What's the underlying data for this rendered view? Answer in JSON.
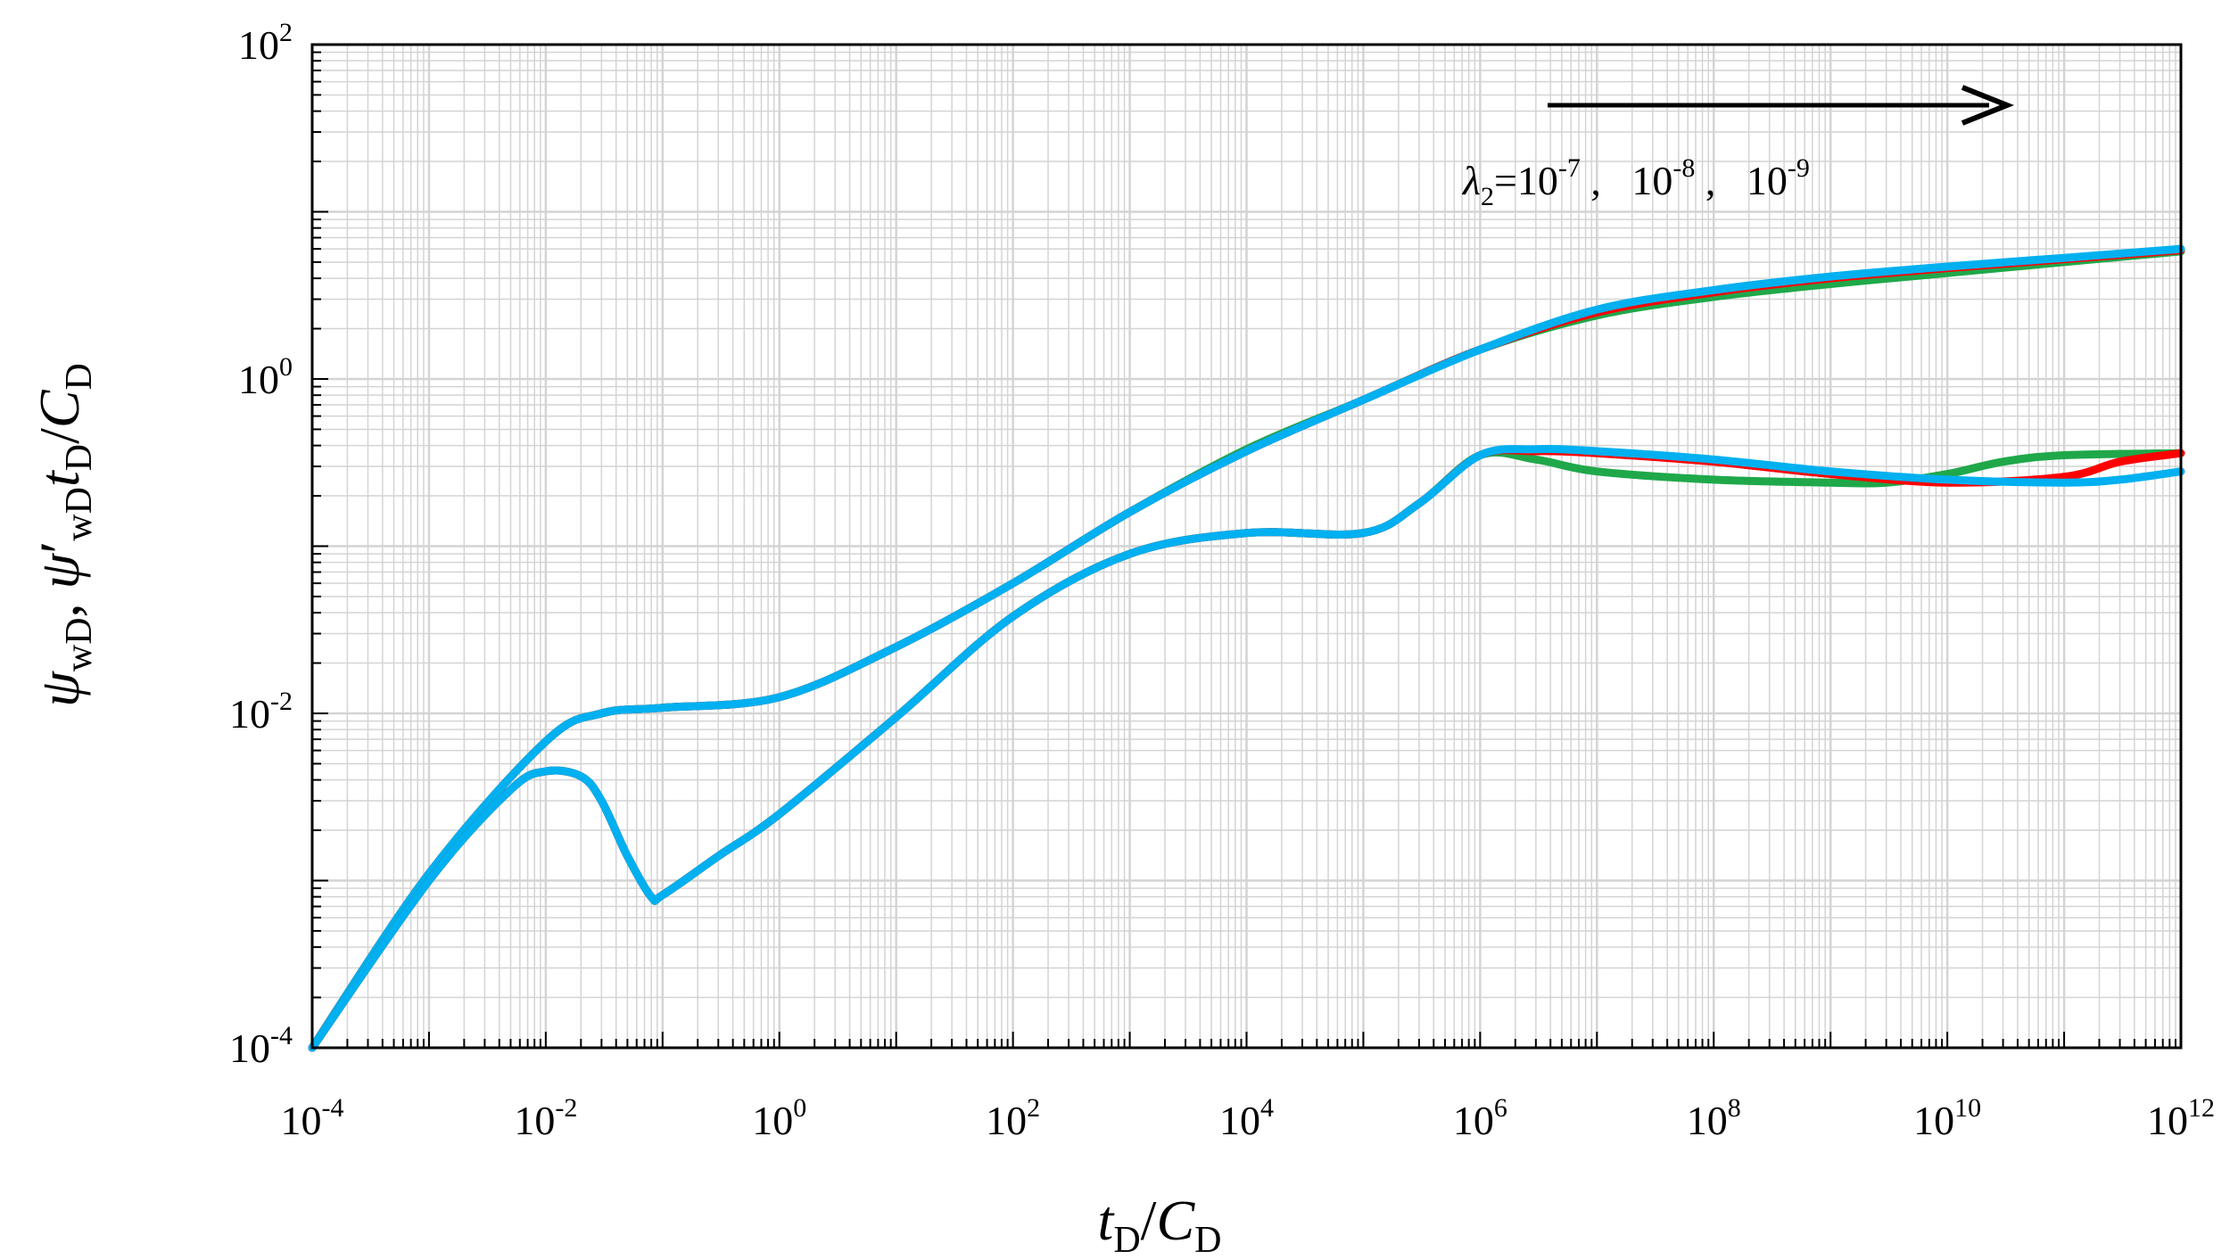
{
  "chart_data": {
    "type": "line",
    "scale": {
      "x": "log",
      "y": "log"
    },
    "xlim": [
      0.0001,
      1000000000000
    ],
    "ylim": [
      0.0001,
      100
    ],
    "grid": true,
    "x_major_ticks": [
      {
        "value": 0.0001,
        "base": "10",
        "exp": "-4"
      },
      {
        "value": 0.01,
        "base": "10",
        "exp": "-2"
      },
      {
        "value": 1,
        "base": "10",
        "exp": "0"
      },
      {
        "value": 100,
        "base": "10",
        "exp": "2"
      },
      {
        "value": 10000,
        "base": "10",
        "exp": "4"
      },
      {
        "value": 1000000,
        "base": "10",
        "exp": "6"
      },
      {
        "value": 100000000,
        "base": "10",
        "exp": "8"
      },
      {
        "value": 10000000000,
        "base": "10",
        "exp": "10"
      },
      {
        "value": 1000000000000,
        "base": "10",
        "exp": "12"
      }
    ],
    "y_major_ticks": [
      {
        "value": 0.0001,
        "base": "10",
        "exp": "-4"
      },
      {
        "value": 0.01,
        "base": "10",
        "exp": "-2"
      },
      {
        "value": 1,
        "base": "10",
        "exp": "0"
      },
      {
        "value": 100,
        "base": "10",
        "exp": "2"
      }
    ],
    "xlabel": {
      "t": "t",
      "t_sub": "D",
      "slash": "/",
      "c": "C",
      "c_sub": "D"
    },
    "ylabel": {
      "psi1": "ψ",
      "psi1_sub": "wD",
      "comma1": ", ",
      "psi2": "ψ",
      "prime": "′",
      "psi2_sub": "wD",
      "t": "t",
      "t_sub": "D",
      "slash": "/",
      "c": "C",
      "c_sub": "D"
    },
    "annotation": {
      "lambda": "λ",
      "lambda_sub": "2",
      "eq": "=10",
      "exp1": "-7",
      "sep1": " ,   10",
      "exp2": "-8",
      "sep2": " ,   10",
      "exp3": "-9",
      "arrow_direction": "right"
    },
    "series": [
      {
        "name": "λ2=10^-7 pressure",
        "color": "#1fa84a",
        "x": [
          0.0001,
          0.001,
          0.01,
          0.03,
          0.1,
          1,
          10,
          100,
          1000,
          10000,
          100000,
          1000000,
          10000000.0,
          100000000.0,
          1000000000.0,
          10000000000.0,
          100000000000.0,
          1000000000000.0
        ],
        "y": [
          0.0001,
          0.0011,
          0.0068,
          0.01,
          0.0108,
          0.0125,
          0.025,
          0.06,
          0.16,
          0.38,
          0.75,
          1.5,
          2.4,
          3.1,
          3.7,
          4.3,
          5.0,
          5.8
        ]
      },
      {
        "name": "λ2=10^-8 pressure",
        "color": "#ff0000",
        "x": [
          0.0001,
          0.001,
          0.01,
          0.03,
          0.1,
          1,
          10,
          100,
          1000,
          10000,
          100000,
          1000000,
          10000000.0,
          100000000.0,
          1000000000.0,
          10000000000.0,
          100000000000.0,
          1000000000000.0
        ],
        "y": [
          0.0001,
          0.0011,
          0.0068,
          0.01,
          0.0108,
          0.0125,
          0.025,
          0.06,
          0.16,
          0.37,
          0.75,
          1.5,
          2.5,
          3.3,
          4.0,
          4.6,
          5.2,
          5.9
        ]
      },
      {
        "name": "λ2=10^-9 pressure",
        "color": "#00b0f0",
        "x": [
          0.0001,
          0.001,
          0.01,
          0.03,
          0.1,
          1,
          10,
          100,
          1000,
          10000,
          100000,
          1000000,
          10000000.0,
          100000000.0,
          1000000000.0,
          10000000000.0,
          100000000000.0,
          1000000000000.0
        ],
        "y": [
          0.0001,
          0.0011,
          0.0068,
          0.01,
          0.0108,
          0.0125,
          0.025,
          0.06,
          0.16,
          0.37,
          0.75,
          1.5,
          2.6,
          3.4,
          4.1,
          4.7,
          5.3,
          6.0
        ]
      },
      {
        "name": "λ2=10^-7 derivative",
        "color": "#1fa84a",
        "x": [
          0.0001,
          0.001,
          0.005,
          0.01,
          0.02,
          0.03,
          0.05,
          0.08,
          0.1,
          0.3,
          1,
          10,
          100,
          1000,
          10000,
          100000,
          300000,
          1000000,
          3000000.0,
          10000000.0,
          100000000.0,
          1000000000.0,
          3000000000.0,
          10000000000.0,
          30000000000.0,
          100000000000.0,
          1000000000000.0
        ],
        "y": [
          0.0001,
          0.001,
          0.0035,
          0.0045,
          0.0042,
          0.003,
          0.0014,
          0.0008,
          0.00082,
          0.0014,
          0.0025,
          0.0095,
          0.038,
          0.09,
          0.12,
          0.12,
          0.18,
          0.35,
          0.33,
          0.28,
          0.25,
          0.24,
          0.24,
          0.27,
          0.32,
          0.35,
          0.36
        ]
      },
      {
        "name": "λ2=10^-8 derivative",
        "color": "#ff0000",
        "x": [
          0.0001,
          0.001,
          0.005,
          0.01,
          0.02,
          0.03,
          0.05,
          0.08,
          0.1,
          0.3,
          1,
          10,
          100,
          1000,
          10000,
          100000,
          300000,
          1000000,
          3000000.0,
          10000000.0,
          100000000.0,
          1000000000.0,
          10000000000.0,
          100000000000.0,
          300000000000.0,
          1000000000000.0
        ],
        "y": [
          0.0001,
          0.001,
          0.0035,
          0.0045,
          0.0042,
          0.003,
          0.0014,
          0.0008,
          0.00082,
          0.0014,
          0.0025,
          0.0095,
          0.038,
          0.09,
          0.12,
          0.12,
          0.18,
          0.35,
          0.37,
          0.36,
          0.32,
          0.27,
          0.24,
          0.26,
          0.32,
          0.36
        ]
      },
      {
        "name": "λ2=10^-9 derivative",
        "color": "#00b0f0",
        "x": [
          0.0001,
          0.001,
          0.005,
          0.01,
          0.02,
          0.03,
          0.05,
          0.08,
          0.1,
          0.3,
          1,
          10,
          100,
          1000,
          10000,
          100000,
          300000,
          1000000,
          3000000.0,
          10000000.0,
          100000000.0,
          1000000000.0,
          10000000000.0,
          100000000000.0,
          300000000000.0,
          1000000000000.0
        ],
        "y": [
          0.0001,
          0.001,
          0.0035,
          0.0045,
          0.0042,
          0.003,
          0.0014,
          0.0008,
          0.00082,
          0.0014,
          0.0025,
          0.0095,
          0.038,
          0.09,
          0.12,
          0.12,
          0.18,
          0.35,
          0.38,
          0.37,
          0.33,
          0.28,
          0.25,
          0.24,
          0.25,
          0.28
        ]
      }
    ]
  }
}
